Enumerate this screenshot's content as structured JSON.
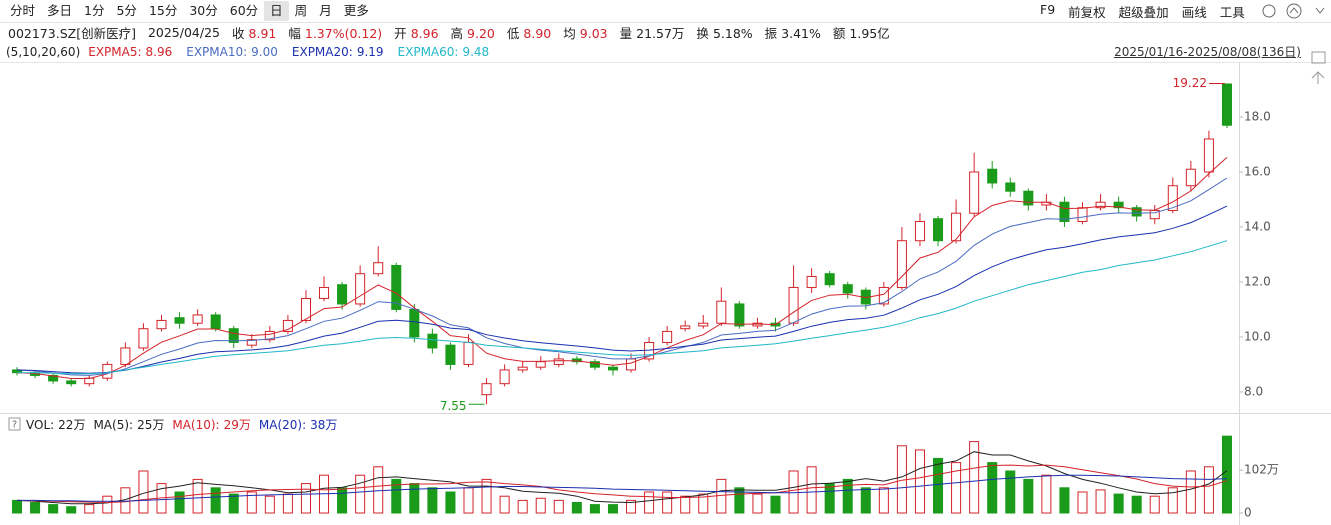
{
  "toolbar": {
    "periods": [
      "分时",
      "多日",
      "1分",
      "5分",
      "15分",
      "30分",
      "60分",
      "日",
      "周",
      "月",
      "更多"
    ],
    "active": "日",
    "tools": [
      "F9",
      "前复权",
      "超级叠加",
      "画线",
      "工具"
    ]
  },
  "info": {
    "code": "002173.SZ[创新医疗]",
    "date": "2025/04/25",
    "fields": [
      {
        "label": "收",
        "value": "8.91",
        "color": "#d4232a"
      },
      {
        "label": "幅",
        "value": "1.37%(0.12)",
        "color": "#d4232a"
      },
      {
        "label": "开",
        "value": "8.96",
        "color": "#d4232a"
      },
      {
        "label": "高",
        "value": "9.20",
        "color": "#d4232a"
      },
      {
        "label": "低",
        "value": "8.90",
        "color": "#d4232a"
      },
      {
        "label": "均",
        "value": "9.03",
        "color": "#d4232a"
      },
      {
        "label": "量",
        "value": "21.57万",
        "color": "#222222"
      },
      {
        "label": "换",
        "value": "5.18%",
        "color": "#222222"
      },
      {
        "label": "振",
        "value": "3.41%",
        "color": "#222222"
      },
      {
        "label": "额",
        "value": "1.95亿",
        "color": "#222222"
      }
    ]
  },
  "chart_data": {
    "type": "candlestick",
    "indicator_params": "(5,10,20,60)",
    "range_label": "2025/01/16-2025/08/08(136日)",
    "up_color": "#d4232a",
    "down_color": "#1a9b1a",
    "ylim": [
      7.27,
      20
    ],
    "yticks": [
      {
        "value": 8,
        "label": "8.0"
      },
      {
        "value": 10,
        "label": "10.0"
      },
      {
        "value": 12,
        "label": "12.0"
      },
      {
        "value": 14,
        "label": "14.0"
      },
      {
        "value": 16,
        "label": "16.0"
      },
      {
        "value": 18,
        "label": "18.0"
      }
    ],
    "open": [
      8.8,
      8.7,
      8.6,
      8.4,
      8.3,
      8.5,
      9.0,
      9.6,
      10.3,
      10.7,
      10.5,
      10.8,
      10.3,
      9.7,
      9.9,
      10.2,
      10.6,
      11.4,
      11.9,
      11.2,
      12.3,
      12.6,
      11.0,
      10.1,
      9.7,
      9.0,
      7.9,
      8.3,
      8.8,
      8.9,
      9.0,
      9.2,
      9.1,
      8.9,
      8.8,
      9.2,
      9.8,
      10.3,
      10.4,
      10.5,
      11.2,
      10.4,
      10.5,
      10.5,
      11.8,
      12.3,
      11.9,
      11.7,
      11.2,
      11.8,
      13.5,
      14.3,
      13.5,
      14.5,
      16.1,
      15.6,
      15.3,
      14.8,
      14.9,
      14.2,
      14.7,
      14.9,
      14.7,
      14.3,
      14.6,
      15.5,
      16.0,
      19.2
    ],
    "high": [
      8.9,
      8.8,
      8.7,
      8.5,
      8.6,
      9.1,
      9.8,
      10.5,
      10.8,
      10.9,
      11.0,
      10.9,
      10.4,
      10.1,
      10.4,
      10.8,
      11.7,
      12.2,
      12.0,
      12.6,
      13.3,
      12.7,
      11.2,
      10.3,
      9.8,
      10.1,
      8.5,
      9.0,
      9.1,
      9.3,
      9.4,
      9.3,
      9.2,
      9.0,
      9.4,
      10.0,
      10.4,
      10.6,
      10.8,
      11.8,
      11.3,
      10.7,
      10.7,
      12.6,
      12.5,
      12.4,
      12.0,
      11.8,
      12.0,
      14.0,
      14.5,
      14.4,
      15.0,
      16.7,
      16.4,
      15.8,
      15.4,
      15.2,
      15.1,
      14.9,
      15.2,
      15.1,
      14.8,
      14.8,
      15.8,
      16.4,
      17.5,
      19.22
    ],
    "low": [
      8.6,
      8.5,
      8.3,
      8.2,
      8.2,
      8.4,
      8.9,
      9.5,
      10.2,
      10.3,
      10.4,
      10.2,
      9.6,
      9.6,
      9.8,
      10.1,
      10.5,
      11.3,
      11.0,
      11.1,
      12.2,
      10.9,
      9.8,
      9.4,
      8.8,
      8.9,
      7.55,
      8.2,
      8.7,
      8.8,
      8.9,
      9.0,
      8.8,
      8.6,
      8.7,
      9.1,
      9.7,
      10.2,
      10.3,
      10.4,
      10.3,
      10.3,
      10.2,
      10.4,
      11.6,
      11.8,
      11.4,
      11.0,
      11.1,
      11.7,
      13.3,
      13.3,
      13.4,
      14.4,
      15.4,
      15.1,
      14.6,
      14.6,
      14.0,
      14.1,
      14.6,
      14.5,
      14.2,
      14.1,
      14.5,
      15.3,
      15.8,
      17.6
    ],
    "close": [
      8.7,
      8.6,
      8.4,
      8.3,
      8.5,
      9.0,
      9.6,
      10.3,
      10.6,
      10.5,
      10.8,
      10.3,
      9.8,
      9.9,
      10.2,
      10.6,
      11.4,
      11.8,
      11.2,
      12.3,
      12.7,
      11.0,
      10.0,
      9.6,
      9.0,
      9.8,
      8.3,
      8.8,
      8.9,
      9.1,
      9.2,
      9.1,
      8.9,
      8.8,
      9.2,
      9.8,
      10.2,
      10.4,
      10.5,
      11.3,
      10.4,
      10.5,
      10.4,
      11.8,
      12.2,
      11.9,
      11.6,
      11.2,
      11.8,
      13.5,
      14.2,
      13.5,
      14.5,
      16.0,
      15.6,
      15.3,
      14.8,
      14.9,
      14.2,
      14.7,
      14.9,
      14.7,
      14.4,
      14.6,
      15.5,
      16.1,
      17.2,
      17.7
    ],
    "annotations": [
      {
        "text": "19.22",
        "color": "#d4232a",
        "at": "max"
      },
      {
        "text": "7.55",
        "color": "#1a9b1a",
        "at": "min"
      }
    ],
    "series": [
      {
        "name": "EXPMA5:",
        "legend_value": "8.96",
        "color": "#d4232a",
        "values": [
          8.7,
          8.67,
          8.58,
          8.49,
          8.49,
          8.66,
          8.97,
          9.41,
          9.81,
          10.04,
          10.29,
          10.29,
          10.13,
          10.05,
          10.1,
          10.27,
          10.65,
          11.03,
          11.09,
          11.49,
          11.89,
          11.59,
          11.06,
          10.57,
          10.05,
          9.97,
          9.41,
          9.21,
          9.11,
          9.11,
          9.14,
          9.13,
          9.05,
          8.97,
          9.05,
          9.3,
          9.6,
          9.87,
          10.08,
          10.49,
          10.46,
          10.47,
          10.45,
          10.9,
          11.33,
          11.52,
          11.55,
          11.43,
          11.55,
          12.2,
          12.87,
          13.08,
          13.55,
          14.37,
          14.78,
          14.95,
          14.9,
          14.9,
          14.67,
          14.68,
          14.75,
          14.73,
          14.62,
          14.61,
          14.91,
          15.31,
          15.94,
          16.53
        ]
      },
      {
        "name": "EXPMA10:",
        "legend_value": "9.00",
        "color": "#4a6bc0",
        "values": [
          8.8,
          8.76,
          8.69,
          8.62,
          8.6,
          8.67,
          8.84,
          9.1,
          9.37,
          9.56,
          9.78,
          9.87,
          9.86,
          9.87,
          9.93,
          10.05,
          10.3,
          10.57,
          10.68,
          10.97,
          11.28,
          11.23,
          11.01,
          10.76,
          10.44,
          10.33,
          9.97,
          9.76,
          9.61,
          9.52,
          9.46,
          9.38,
          9.29,
          9.2,
          9.2,
          9.31,
          9.47,
          9.64,
          9.8,
          10.07,
          10.13,
          10.2,
          10.24,
          10.52,
          10.83,
          11.02,
          11.12,
          11.13,
          11.25,
          11.65,
          12.11,
          12.36,
          12.75,
          13.33,
          13.74,
          14.02,
          14.16,
          14.3,
          14.28,
          14.36,
          14.46,
          14.51,
          14.5,
          14.52,
          14.7,
          14.95,
          15.36,
          15.78
        ]
      },
      {
        "name": "EXPMA20:",
        "legend_value": "9.19",
        "color": "#1a2fb0",
        "values": [
          8.8,
          8.78,
          8.74,
          8.7,
          8.68,
          8.71,
          8.79,
          8.93,
          9.09,
          9.22,
          9.37,
          9.46,
          9.49,
          9.53,
          9.59,
          9.69,
          9.85,
          10.03,
          10.14,
          10.35,
          10.57,
          10.61,
          10.55,
          10.46,
          10.32,
          10.27,
          10.08,
          9.96,
          9.86,
          9.79,
          9.73,
          9.67,
          9.6,
          9.52,
          9.49,
          9.52,
          9.58,
          9.66,
          9.74,
          9.89,
          9.94,
          9.99,
          10.03,
          10.2,
          10.39,
          10.53,
          10.63,
          10.68,
          10.79,
          11.05,
          11.35,
          11.55,
          11.83,
          12.23,
          12.55,
          12.81,
          13.0,
          13.17,
          13.26,
          13.39,
          13.53,
          13.64,
          13.71,
          13.79,
          13.95,
          14.16,
          14.45,
          14.76
        ]
      },
      {
        "name": "EXPMA60:",
        "legend_value": "9.48",
        "color": "#20b8c8",
        "values": [
          8.7,
          8.7,
          8.68,
          8.66,
          8.66,
          8.7,
          8.8,
          8.9,
          9.0,
          9.1,
          9.2,
          9.3,
          9.35,
          9.4,
          9.45,
          9.5,
          9.6,
          9.7,
          9.75,
          9.85,
          9.95,
          9.98,
          9.95,
          9.9,
          9.85,
          9.8,
          9.7,
          9.65,
          9.6,
          9.55,
          9.5,
          9.45,
          9.4,
          9.35,
          9.33,
          9.35,
          9.4,
          9.45,
          9.5,
          9.6,
          9.65,
          9.7,
          9.75,
          9.85,
          9.95,
          10.05,
          10.15,
          10.25,
          10.35,
          10.5,
          10.7,
          10.85,
          11.05,
          11.3,
          11.5,
          11.7,
          11.9,
          12.05,
          12.2,
          12.35,
          12.45,
          12.6,
          12.7,
          12.8,
          12.95,
          13.1,
          13.3,
          13.5
        ]
      }
    ],
    "volume": {
      "help_icon": "?",
      "name": "VOL:",
      "legend_value": "22万",
      "ylim": [
        0,
        200
      ],
      "yticks": [
        0,
        {
          "value": 102,
          "label": "102万"
        }
      ],
      "values": [
        30,
        25,
        20,
        15,
        20,
        40,
        60,
        100,
        70,
        50,
        80,
        60,
        45,
        50,
        40,
        45,
        70,
        90,
        60,
        90,
        110,
        80,
        70,
        60,
        50,
        60,
        80,
        40,
        30,
        35,
        30,
        25,
        20,
        20,
        30,
        50,
        50,
        40,
        45,
        80,
        60,
        45,
        40,
        100,
        110,
        70,
        80,
        60,
        60,
        160,
        150,
        130,
        120,
        170,
        120,
        100,
        80,
        90,
        60,
        50,
        55,
        45,
        40,
        40,
        60,
        100,
        110,
        183
      ],
      "series": [
        {
          "name": "MA(5):",
          "legend_value": "25万",
          "color": "#222222",
          "values": [
            30,
            28,
            25,
            22,
            22,
            24,
            32,
            47,
            58,
            64,
            72,
            68,
            65,
            60,
            55,
            48,
            50,
            59,
            61,
            71,
            84,
            86,
            82,
            78,
            74,
            64,
            64,
            60,
            52,
            49,
            47,
            40,
            28,
            26,
            25,
            29,
            34,
            38,
            43,
            53,
            55,
            54,
            54,
            61,
            69,
            71,
            75,
            82,
            76,
            86,
            106,
            116,
            124,
            146,
            138,
            138,
            124,
            112,
            94,
            80,
            71,
            60,
            50,
            46,
            48,
            57,
            69,
            101
          ]
        },
        {
          "name": "MA(10):",
          "legend_value": "29万",
          "color": "#d4232a",
          "values": [
            30,
            29,
            28,
            27,
            26,
            25,
            27,
            32,
            36,
            39,
            44,
            47,
            50,
            53,
            55,
            56,
            57,
            55,
            57,
            60,
            64,
            67,
            69,
            69,
            70,
            73,
            74,
            70,
            67,
            63,
            55,
            50,
            46,
            43,
            40,
            39,
            37,
            37,
            38,
            42,
            45,
            47,
            48,
            54,
            60,
            62,
            66,
            68,
            67,
            78,
            84,
            92,
            100,
            107,
            113,
            114,
            112,
            114,
            110,
            103,
            96,
            89,
            81,
            70,
            64,
            62,
            64,
            77
          ]
        },
        {
          "name": "MA(20):",
          "legend_value": "38万",
          "color": "#1a2fb0",
          "values": [
            30,
            30,
            29,
            29,
            28,
            28,
            28,
            30,
            32,
            34,
            36,
            38,
            40,
            42,
            43,
            44,
            45,
            46,
            47,
            50,
            53,
            55,
            57,
            58,
            59,
            60,
            62,
            63,
            63,
            62,
            61,
            60,
            59,
            57,
            56,
            55,
            54,
            53,
            52,
            51,
            50,
            49,
            48,
            48,
            50,
            52,
            54,
            56,
            57,
            60,
            64,
            68,
            72,
            76,
            80,
            83,
            86,
            88,
            90,
            90,
            89,
            88,
            86,
            84,
            82,
            81,
            80,
            82
          ]
        }
      ]
    }
  }
}
